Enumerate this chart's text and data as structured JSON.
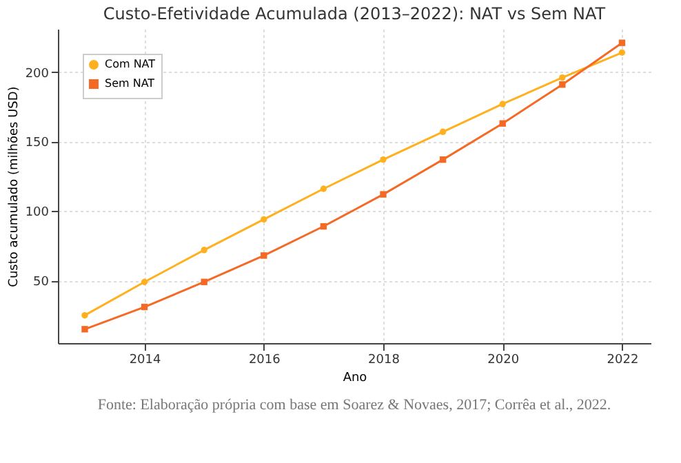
{
  "chart_data": {
    "type": "line",
    "title": "Custo-Efetividade Acumulada (2013–2022): NAT vs Sem NAT",
    "xlabel": "Ano",
    "ylabel": "Custo acumulado (milhões USD)",
    "x": [
      2013,
      2014,
      2015,
      2016,
      2017,
      2018,
      2019,
      2020,
      2021,
      2022
    ],
    "series": [
      {
        "name": "Com NAT",
        "color": "#ffb01f",
        "marker": "circle",
        "values": [
          25,
          49,
          72,
          94,
          116,
          137,
          157,
          177,
          196,
          214
        ]
      },
      {
        "name": "Sem NAT",
        "color": "#f46a25",
        "marker": "square",
        "values": [
          15,
          31,
          49,
          68,
          89,
          112,
          137,
          163,
          191,
          221
        ]
      }
    ],
    "xlim": [
      2012.55,
      2022.48
    ],
    "xticks": [
      2014,
      2016,
      2018,
      2020,
      2022
    ],
    "ylim": [
      5,
      231
    ],
    "yticks": [
      50,
      100,
      150,
      200
    ],
    "grid": true,
    "legend": "top left",
    "line_style": "solid",
    "annotations": [
      "Fonte: Elaboração própria com base em Soarez & Novaes, 2017; Corrêa et al., 2022."
    ]
  }
}
